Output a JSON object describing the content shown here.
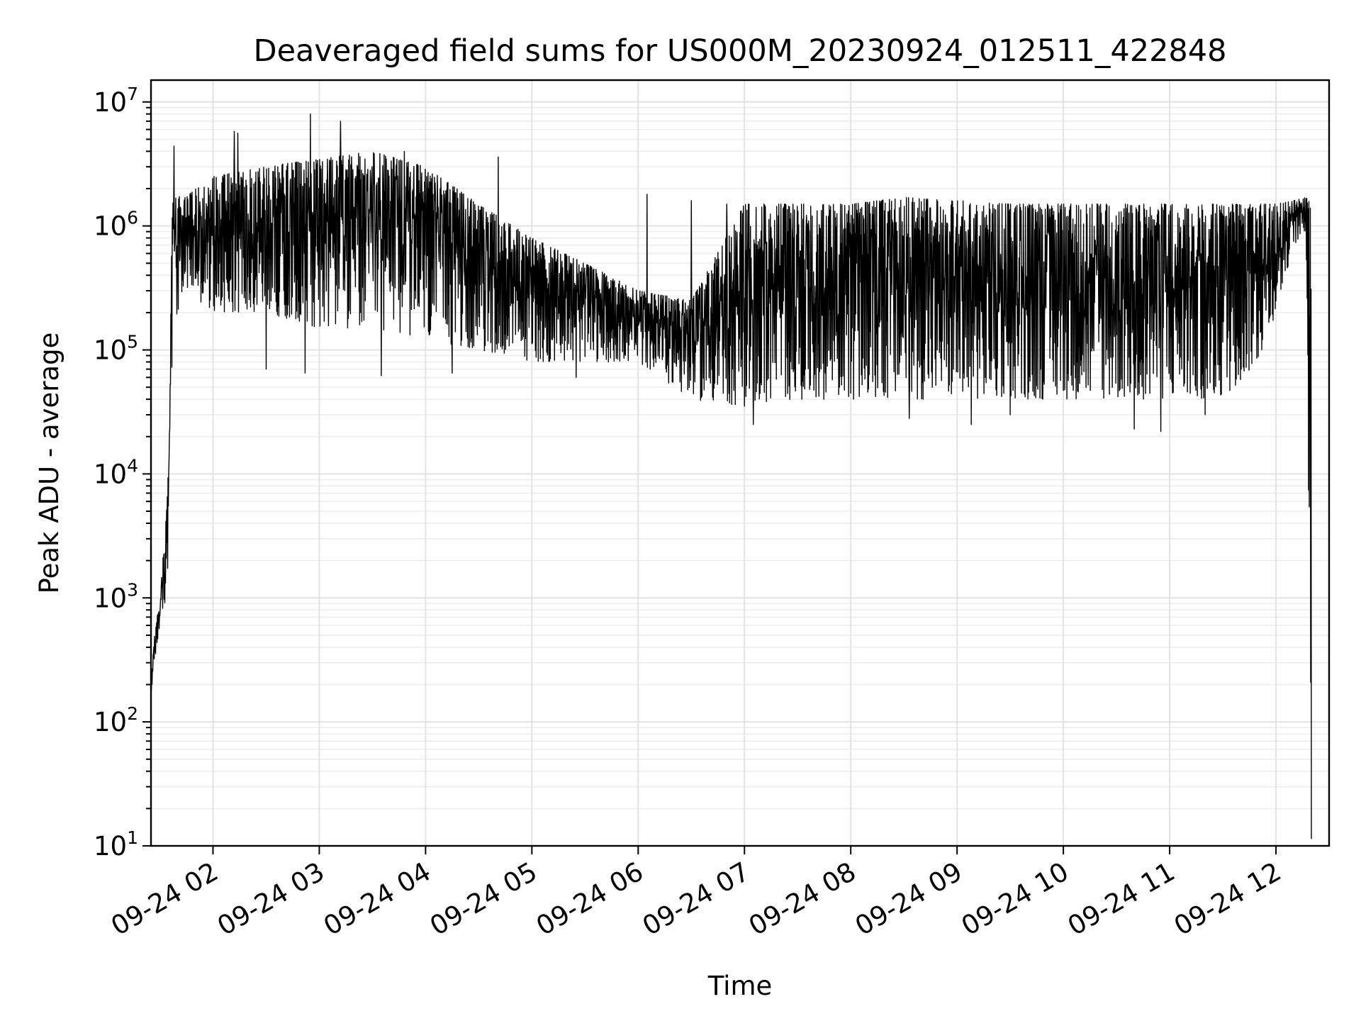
{
  "chart_data": {
    "type": "line",
    "title": "Deaveraged field sums for US000M_20230924_012511_422848",
    "xlabel": "Time",
    "ylabel": "Peak ADU - average",
    "yscale": "log",
    "ylim": [
      10,
      15000000
    ],
    "xlim": [
      "2023-09-24 01:25",
      "2023-09-24 12:30"
    ],
    "grid": true,
    "grid_minor": true,
    "x_tick_labels": [
      "09-24 02",
      "09-24 03",
      "09-24 04",
      "09-24 05",
      "09-24 06",
      "09-24 07",
      "09-24 08",
      "09-24 09",
      "09-24 10",
      "09-24 11",
      "09-24 12"
    ],
    "x_tick_values": [
      "2023-09-24 02:00",
      "2023-09-24 03:00",
      "2023-09-24 04:00",
      "2023-09-24 05:00",
      "2023-09-24 06:00",
      "2023-09-24 07:00",
      "2023-09-24 08:00",
      "2023-09-24 09:00",
      "2023-09-24 10:00",
      "2023-09-24 11:00",
      "2023-09-24 12:00"
    ],
    "y_tick_values": [
      10,
      100,
      1000,
      10000,
      100000,
      1000000,
      10000000
    ],
    "y_tick_labels": [
      {
        "base": "10",
        "exp": "1"
      },
      {
        "base": "10",
        "exp": "2"
      },
      {
        "base": "10",
        "exp": "3"
      },
      {
        "base": "10",
        "exp": "4"
      },
      {
        "base": "10",
        "exp": "5"
      },
      {
        "base": "10",
        "exp": "6"
      },
      {
        "base": "10",
        "exp": "7"
      }
    ],
    "line_color": "#000000",
    "series": [
      {
        "envelope": {
          "x": [
            "2023-09-24 01:25",
            "2023-09-24 01:27",
            "2023-09-24 01:30",
            "2023-09-24 01:33",
            "2023-09-24 01:35",
            "2023-09-24 01:37",
            "2023-09-24 01:40",
            "2023-09-24 01:45",
            "2023-09-24 02:00",
            "2023-09-24 02:30",
            "2023-09-24 03:00",
            "2023-09-24 03:30",
            "2023-09-24 04:00",
            "2023-09-24 04:30",
            "2023-09-24 05:00",
            "2023-09-24 05:30",
            "2023-09-24 06:00",
            "2023-09-24 06:30",
            "2023-09-24 07:00",
            "2023-09-24 07:30",
            "2023-09-24 08:00",
            "2023-09-24 08:30",
            "2023-09-24 09:00",
            "2023-09-24 09:30",
            "2023-09-24 10:00",
            "2023-09-24 10:30",
            "2023-09-24 11:00",
            "2023-09-24 11:30",
            "2023-09-24 11:50",
            "2023-09-24 12:00",
            "2023-09-24 12:10",
            "2023-09-24 12:17",
            "2023-09-24 12:20"
          ],
          "low": [
            150,
            300,
            600,
            900,
            2000,
            100000,
            200000,
            300000,
            200000,
            200000,
            150000,
            150000,
            120000,
            100000,
            80000,
            80000,
            80000,
            40000,
            35000,
            40000,
            40000,
            40000,
            40000,
            40000,
            40000,
            40000,
            40000,
            40000,
            80000,
            200000,
            700000,
            900000,
            10
          ],
          "high": [
            200,
            500,
            1000,
            3500,
            12000,
            1500000,
            1800000,
            1800000,
            2500000,
            3000000,
            3500000,
            4000000,
            3000000,
            1500000,
            800000,
            500000,
            300000,
            250000,
            1500000,
            1500000,
            1500000,
            1700000,
            1600000,
            1500000,
            1500000,
            1500000,
            1500000,
            1500000,
            1500000,
            1500000,
            1600000,
            1700000,
            1500000
          ]
        },
        "spikes": [
          {
            "x": "2023-09-24 01:38",
            "y": 4400000
          },
          {
            "x": "2023-09-24 02:12",
            "y": 5800000
          },
          {
            "x": "2023-09-24 02:14",
            "y": 5600000
          },
          {
            "x": "2023-09-24 02:55",
            "y": 8000000
          },
          {
            "x": "2023-09-24 03:12",
            "y": 7000000
          },
          {
            "x": "2023-09-24 03:48",
            "y": 4000000
          },
          {
            "x": "2023-09-24 04:41",
            "y": 3600000
          },
          {
            "x": "2023-09-24 06:05",
            "y": 1800000
          },
          {
            "x": "2023-09-24 06:30",
            "y": 1600000
          },
          {
            "x": "2023-09-24 06:50",
            "y": 1500000
          },
          {
            "x": "2023-09-24 02:30",
            "y": 70000
          },
          {
            "x": "2023-09-24 02:52",
            "y": 65000
          },
          {
            "x": "2023-09-24 03:35",
            "y": 62000
          },
          {
            "x": "2023-09-24 04:15",
            "y": 65000
          },
          {
            "x": "2023-09-24 05:25",
            "y": 60000
          },
          {
            "x": "2023-09-24 07:05",
            "y": 25000
          },
          {
            "x": "2023-09-24 08:33",
            "y": 28000
          },
          {
            "x": "2023-09-24 09:08",
            "y": 25000
          },
          {
            "x": "2023-09-24 09:30",
            "y": 30000
          },
          {
            "x": "2023-09-24 10:40",
            "y": 23000
          },
          {
            "x": "2023-09-24 10:55",
            "y": 22000
          },
          {
            "x": "2023-09-24 11:20",
            "y": 30000
          }
        ]
      }
    ]
  }
}
